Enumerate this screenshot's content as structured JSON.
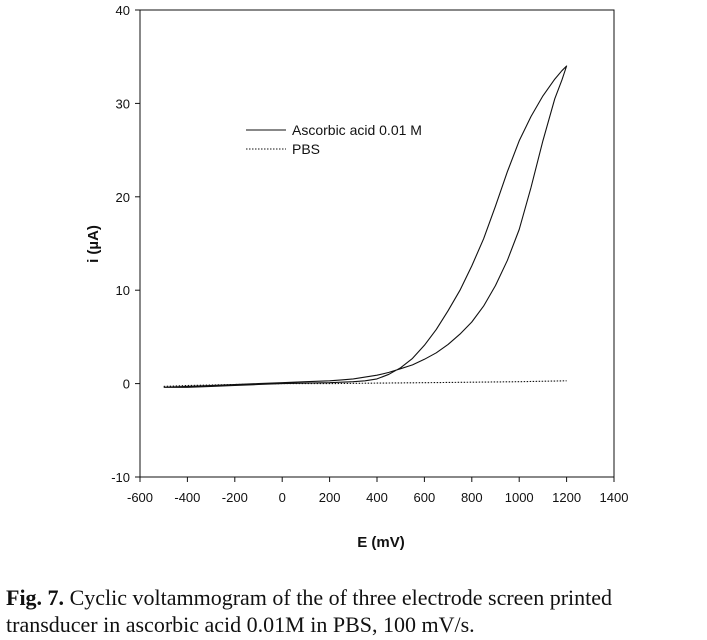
{
  "chart_data": {
    "type": "line",
    "xlabel": "E (mV)",
    "ylabel": "i (µA)",
    "xlim": [
      -600,
      1400
    ],
    "ylim": [
      -10,
      40
    ],
    "xticks": [
      "-600",
      "-400",
      "-200",
      "0",
      "200",
      "400",
      "600",
      "800",
      "1000",
      "1200",
      "1400"
    ],
    "yticks": [
      "-10",
      "0",
      "10",
      "20",
      "30",
      "40"
    ],
    "legend_position": "upper-left",
    "series": [
      {
        "name": "Ascorbic acid 0.01 M",
        "style": "solid",
        "x": [
          -500,
          -400,
          -300,
          -200,
          -100,
          0,
          100,
          200,
          250,
          300,
          350,
          400,
          450,
          500,
          550,
          600,
          650,
          700,
          750,
          800,
          850,
          900,
          950,
          1000,
          1050,
          1100,
          1150,
          1180,
          1200,
          1200,
          1180,
          1150,
          1100,
          1050,
          1000,
          950,
          900,
          850,
          800,
          750,
          700,
          650,
          600,
          550,
          500,
          450,
          400,
          350,
          300,
          250,
          200,
          100,
          0,
          -100,
          -200,
          -300,
          -400,
          -500
        ],
        "y": [
          -0.4,
          -0.3,
          -0.2,
          -0.1,
          0.0,
          0.1,
          0.2,
          0.3,
          0.4,
          0.5,
          0.7,
          0.9,
          1.2,
          1.6,
          2.0,
          2.6,
          3.3,
          4.2,
          5.3,
          6.6,
          8.3,
          10.5,
          13.2,
          16.5,
          21.0,
          26.0,
          30.5,
          32.5,
          34.0,
          34.0,
          33.5,
          32.6,
          30.8,
          28.6,
          26.0,
          22.7,
          19.0,
          15.5,
          12.6,
          10.0,
          7.8,
          5.8,
          4.1,
          2.7,
          1.7,
          1.0,
          0.5,
          0.3,
          0.2,
          0.15,
          0.1,
          0.05,
          0.0,
          -0.1,
          -0.2,
          -0.3,
          -0.4,
          -0.4
        ]
      },
      {
        "name": "PBS",
        "style": "dotted",
        "x": [
          -500,
          -400,
          -200,
          0,
          200,
          400,
          600,
          800,
          1000,
          1200
        ],
        "y": [
          -0.3,
          -0.2,
          -0.1,
          0.0,
          0.0,
          0.05,
          0.1,
          0.15,
          0.2,
          0.3
        ]
      }
    ]
  },
  "caption": {
    "label": "Fig. 7.",
    "text": " Cyclic voltammogram of the of three electrode screen printed transducer in ascorbic acid 0.01M in PBS, 100 mV/s."
  }
}
